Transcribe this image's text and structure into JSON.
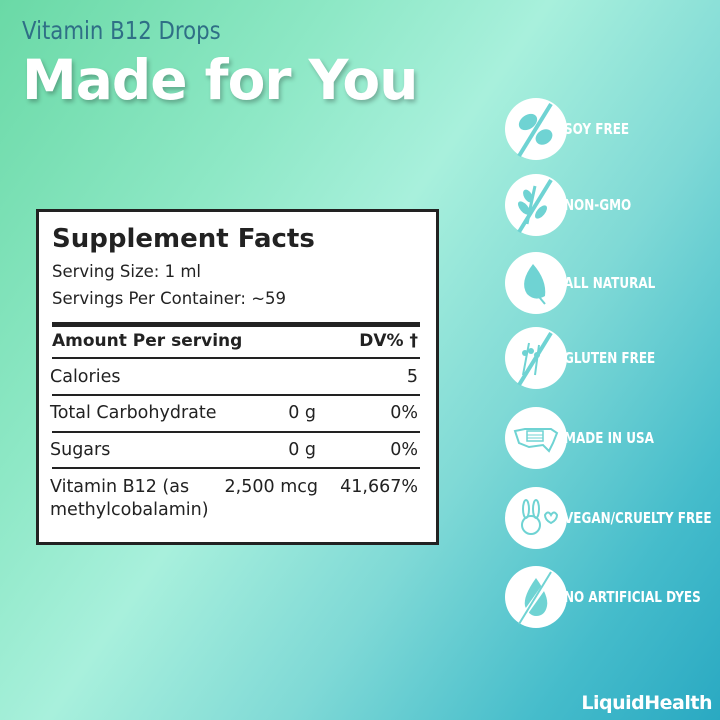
{
  "header": {
    "subtitle": "Vitamin B12 Drops",
    "title": "Made for You"
  },
  "facts": {
    "title": "Supplement Facts",
    "serving_size": "Serving Size: 1 ml",
    "servings_per_container": "Servings Per Container: ~59",
    "header_left": "Amount Per serving",
    "header_right": "DV% †",
    "rows": [
      {
        "name": "Calories",
        "amount": "",
        "dv": "5"
      },
      {
        "name": "Total Carbohydrate",
        "amount": "0 g",
        "dv": "0%"
      },
      {
        "name": "Sugars",
        "amount": "0 g",
        "dv": "0%"
      },
      {
        "name": "Vitamin B12 (as",
        "name2": "methylcobalamin)",
        "amount": "2,500 mcg",
        "dv": "41,667%"
      }
    ]
  },
  "badges": [
    {
      "icon": "soy-free-icon",
      "label": "SOY FREE"
    },
    {
      "icon": "non-gmo-icon",
      "label": "NON-GMO"
    },
    {
      "icon": "leaf-icon",
      "label": "ALL NATURAL"
    },
    {
      "icon": "gluten-free-icon",
      "label": "GLUTEN FREE"
    },
    {
      "icon": "usa-map-icon",
      "label": "MADE IN USA"
    },
    {
      "icon": "bunny-icon",
      "label": "VEGAN/CRUELTY FREE"
    },
    {
      "icon": "no-dye-drop-icon",
      "label": "NO ARTIFICIAL DYES"
    }
  ],
  "logo": "LiquidHealth",
  "colors": {
    "icon_fg": "#6fd3d3",
    "subtitle": "#2f6f86"
  }
}
